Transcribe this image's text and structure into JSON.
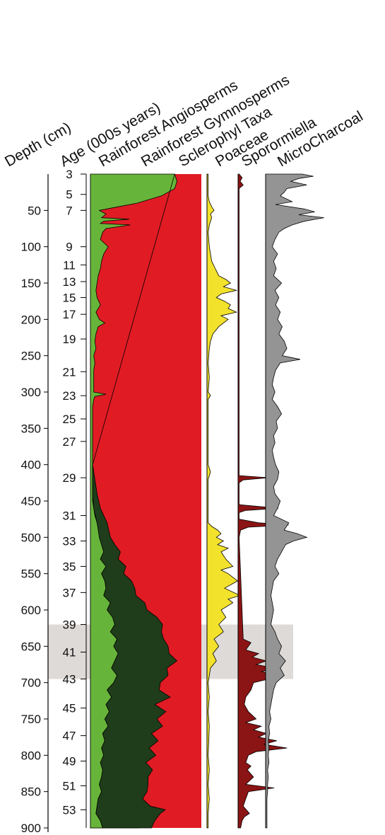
{
  "chart_data": {
    "type": "area",
    "column_headers": [
      "Depth (cm)",
      "Age (000s years)",
      "Rainforest Angiosperms",
      "Rainforest Gymnosperms",
      "Sclerophyl Taxa",
      "Poaceae",
      "Sporormiella",
      "MicroCharcoal"
    ],
    "depth_axis": {
      "label": "Depth (cm)",
      "range": [
        0,
        900
      ],
      "ticks": [
        50,
        100,
        150,
        200,
        250,
        300,
        350,
        400,
        450,
        500,
        550,
        600,
        650,
        700,
        750,
        800,
        850,
        900
      ]
    },
    "age_axis": {
      "label": "Age (000s years)",
      "labels": [
        "3",
        "5",
        "7",
        "9",
        "11",
        "13",
        "15",
        "17",
        "19",
        "21",
        "23",
        "25",
        "27",
        "29",
        "31",
        "33",
        "35",
        "37",
        "39",
        "41",
        "43",
        "45",
        "47",
        "49",
        "51",
        "53"
      ],
      "depths_cm": [
        0,
        28,
        50,
        100,
        125,
        148,
        170,
        193,
        227,
        272,
        305,
        337,
        368,
        418,
        470,
        505,
        540,
        576,
        620,
        658,
        695,
        735,
        773,
        808,
        842,
        875
      ]
    },
    "highlight_band_cm": [
      620,
      695
    ],
    "series": [
      {
        "name": "Rainforest Angiosperms",
        "kind": "stacked_boundary_percent",
        "color": "#67b43a",
        "depth": [
          0,
          10,
          20,
          30,
          40,
          45,
          50,
          55,
          60,
          62,
          65,
          68,
          70,
          75,
          80,
          90,
          100,
          110,
          120,
          130,
          140,
          150,
          160,
          170,
          180,
          190,
          200,
          205,
          210,
          220,
          230,
          240,
          250,
          260,
          270,
          280,
          290,
          300,
          303,
          306,
          310,
          320,
          330,
          340,
          350,
          360,
          370,
          380,
          390,
          400,
          410,
          420,
          430,
          440,
          450,
          460,
          470,
          480,
          490,
          500,
          510,
          520,
          530,
          540,
          550,
          560,
          570,
          580,
          590,
          600,
          610,
          620,
          630,
          640,
          650,
          660,
          670,
          680,
          690,
          700,
          710,
          720,
          730,
          740,
          750,
          760,
          770,
          780,
          790,
          800,
          810,
          820,
          830,
          840,
          850,
          860,
          870,
          880,
          890,
          900
        ],
        "values": [
          76,
          78,
          76,
          64,
          42,
          25,
          8,
          14,
          10,
          35,
          12,
          9,
          36,
          14,
          11,
          9,
          16,
          12,
          10,
          9,
          7,
          6,
          5,
          6,
          9,
          5,
          8,
          13,
          7,
          5,
          4,
          5,
          3,
          4,
          3,
          3,
          3,
          3,
          14,
          4,
          3,
          2,
          2,
          2,
          2,
          2,
          2,
          2,
          2,
          2,
          2,
          2,
          2,
          2,
          2,
          3,
          4,
          6,
          9,
          8,
          10,
          12,
          9,
          14,
          10,
          13,
          14,
          12,
          18,
          15,
          20,
          22,
          18,
          24,
          21,
          25,
          22,
          19,
          24,
          21,
          15,
          19,
          14,
          17,
          13,
          16,
          11,
          13,
          10,
          12,
          9,
          11,
          10,
          8,
          10,
          7,
          6,
          5,
          9,
          11
        ]
      },
      {
        "name": "Rainforest Gymnosperms",
        "kind": "stacked_boundary_percent",
        "color": "#1f3d1a",
        "depth": [
          0,
          400,
          420,
          440,
          460,
          480,
          500,
          510,
          520,
          530,
          540,
          550,
          560,
          570,
          580,
          590,
          600,
          610,
          620,
          630,
          640,
          650,
          660,
          670,
          680,
          690,
          700,
          710,
          720,
          730,
          740,
          750,
          760,
          770,
          780,
          790,
          800,
          810,
          820,
          830,
          840,
          850,
          860,
          870,
          875,
          880,
          890,
          900
        ],
        "values": [
          0,
          0,
          2,
          4,
          6,
          9,
          10,
          12,
          15,
          16,
          18,
          20,
          24,
          26,
          29,
          31,
          36,
          40,
          43,
          46,
          42,
          49,
          46,
          56,
          50,
          46,
          42,
          47,
          53,
          44,
          51,
          47,
          49,
          44,
          48,
          43,
          47,
          41,
          45,
          42,
          44,
          41,
          40,
          48,
          62,
          58,
          49,
          44
        ]
      },
      {
        "name": "Sclerophyl Taxa",
        "kind": "remainder_percent",
        "color": "#e01b24"
      },
      {
        "name": "Poaceae",
        "kind": "percent",
        "color": "#f2e22c",
        "max": 30,
        "depth": [
          0,
          30,
          38,
          45,
          50,
          55,
          60,
          70,
          80,
          100,
          120,
          130,
          140,
          145,
          150,
          155,
          160,
          165,
          170,
          175,
          180,
          185,
          190,
          195,
          200,
          210,
          220,
          225,
          230,
          240,
          260,
          280,
          300,
          305,
          310,
          330,
          380,
          400,
          410,
          420,
          440,
          480,
          485,
          490,
          495,
          500,
          505,
          510,
          515,
          520,
          530,
          540,
          545,
          550,
          560,
          570,
          580,
          585,
          590,
          600,
          610,
          620,
          630,
          640,
          650,
          660,
          670,
          680,
          690,
          700,
          720,
          740,
          760,
          800,
          820,
          840,
          860,
          880,
          900
        ],
        "values": [
          1,
          1,
          2,
          4,
          6,
          3,
          4,
          2,
          1,
          2,
          4,
          7,
          10,
          16,
          20,
          14,
          25,
          12,
          8,
          15,
          20,
          18,
          25,
          12,
          18,
          10,
          5,
          4,
          3,
          2,
          1,
          2,
          1,
          3,
          1,
          1,
          1,
          1,
          3,
          1,
          1,
          1,
          4,
          9,
          12,
          8,
          14,
          9,
          18,
          12,
          16,
          22,
          12,
          18,
          26,
          15,
          28,
          18,
          22,
          12,
          16,
          10,
          14,
          6,
          10,
          5,
          8,
          3,
          2,
          1,
          2,
          1,
          2,
          1,
          2,
          1,
          2,
          1,
          1
        ]
      },
      {
        "name": "Sporormiella",
        "kind": "percent",
        "color": "#8b1414",
        "max": 100,
        "depth": [
          0,
          5,
          10,
          15,
          20,
          400,
          415,
          418,
          421,
          425,
          455,
          460,
          463,
          466,
          475,
          480,
          483,
          486,
          490,
          500,
          640,
          645,
          655,
          660,
          665,
          670,
          675,
          680,
          685,
          690,
          695,
          700,
          710,
          720,
          730,
          740,
          750,
          755,
          760,
          765,
          770,
          775,
          780,
          785,
          790,
          795,
          800,
          810,
          815,
          820,
          830,
          840,
          845,
          850,
          860,
          870,
          880,
          885,
          890,
          900
        ],
        "values": [
          2,
          8,
          4,
          10,
          2,
          2,
          2,
          60,
          10,
          2,
          2,
          78,
          15,
          2,
          2,
          40,
          98,
          20,
          5,
          2,
          10,
          25,
          15,
          40,
          28,
          55,
          35,
          70,
          45,
          90,
          60,
          30,
          25,
          15,
          12,
          20,
          35,
          15,
          45,
          30,
          55,
          40,
          75,
          50,
          95,
          35,
          20,
          15,
          25,
          18,
          30,
          15,
          70,
          20,
          15,
          10,
          22,
          12,
          8,
          5
        ]
      },
      {
        "name": "MicroCharcoal",
        "kind": "relative",
        "color": "#949494",
        "max": 100,
        "depth": [
          0,
          3,
          6,
          10,
          15,
          20,
          25,
          30,
          38,
          42,
          48,
          52,
          56,
          60,
          65,
          70,
          75,
          80,
          90,
          100,
          110,
          120,
          130,
          140,
          150,
          160,
          170,
          180,
          190,
          200,
          210,
          220,
          230,
          240,
          250,
          255,
          260,
          270,
          280,
          290,
          300,
          310,
          320,
          330,
          340,
          350,
          360,
          370,
          380,
          390,
          400,
          410,
          420,
          430,
          440,
          450,
          460,
          470,
          480,
          490,
          495,
          500,
          505,
          510,
          520,
          530,
          540,
          550,
          560,
          570,
          580,
          590,
          600,
          610,
          620,
          630,
          640,
          650,
          660,
          670,
          680,
          690,
          700,
          710,
          720,
          730,
          740,
          750,
          760,
          770,
          780,
          790,
          800,
          810,
          820,
          830,
          840,
          850,
          860,
          870,
          880,
          890,
          900
        ],
        "values": [
          55,
          72,
          50,
          38,
          62,
          32,
          28,
          22,
          40,
          15,
          58,
          74,
          50,
          88,
          58,
          40,
          28,
          20,
          14,
          10,
          18,
          12,
          16,
          12,
          24,
          14,
          20,
          15,
          22,
          18,
          25,
          20,
          28,
          32,
          25,
          52,
          22,
          15,
          12,
          10,
          14,
          10,
          18,
          24,
          16,
          18,
          12,
          14,
          10,
          12,
          15,
          20,
          18,
          12,
          14,
          22,
          18,
          12,
          35,
          28,
          48,
          62,
          42,
          30,
          24,
          18,
          14,
          20,
          12,
          10,
          8,
          10,
          12,
          10,
          8,
          14,
          18,
          24,
          20,
          30,
          22,
          28,
          16,
          12,
          10,
          8,
          6,
          8,
          5,
          6,
          4,
          5,
          4,
          5,
          3,
          4,
          3,
          3,
          2,
          2,
          2,
          2,
          2
        ]
      }
    ]
  }
}
